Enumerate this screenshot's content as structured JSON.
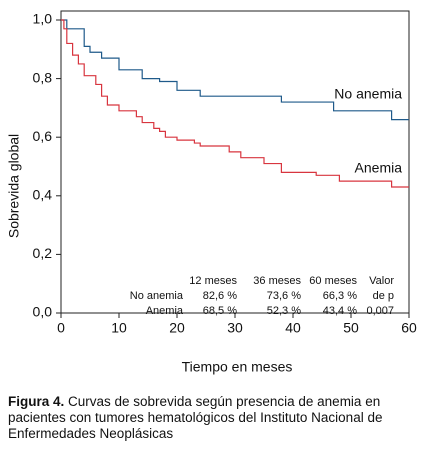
{
  "chart_data": {
    "type": "line",
    "step": "post",
    "xlabel": "Tiempo en meses",
    "ylabel": "Sobrevida global",
    "xlim": [
      0,
      60
    ],
    "xticks": [
      0,
      10,
      20,
      30,
      40,
      50,
      60
    ],
    "ylim": [
      0,
      1
    ],
    "yticks": [
      {
        "value": 0,
        "label": "0,0"
      },
      {
        "value": 0.2,
        "label": "0,2"
      },
      {
        "value": 0.4,
        "label": "0,4"
      },
      {
        "value": 0.6,
        "label": "0,6"
      },
      {
        "value": 0.8,
        "label": "0,8"
      },
      {
        "value": 1,
        "label": "1,0"
      }
    ],
    "grid": false,
    "series": [
      {
        "name": "No anemia",
        "color": "#1f5a8a",
        "x": [
          0,
          1,
          4,
          5,
          7,
          10,
          14,
          17,
          20,
          24,
          38,
          47,
          57,
          60
        ],
        "values": [
          1,
          0.97,
          0.91,
          0.89,
          0.87,
          0.83,
          0.8,
          0.79,
          0.76,
          0.74,
          0.72,
          0.69,
          0.66,
          0.66
        ]
      },
      {
        "name": "Anemia",
        "color": "#d8353f",
        "x": [
          0,
          0.5,
          1,
          2,
          3,
          4,
          6,
          7,
          8,
          10,
          13,
          14,
          16,
          17,
          18,
          20,
          23,
          24,
          29,
          31,
          35,
          38,
          44,
          48,
          57,
          60
        ],
        "values": [
          1,
          0.97,
          0.92,
          0.88,
          0.85,
          0.81,
          0.78,
          0.74,
          0.71,
          0.69,
          0.67,
          0.65,
          0.63,
          0.62,
          0.6,
          0.59,
          0.58,
          0.57,
          0.55,
          0.53,
          0.51,
          0.48,
          0.47,
          0.45,
          0.43,
          0.43
        ]
      }
    ],
    "table": {
      "columns": [
        "12 meses",
        "36 meses",
        "60 meses",
        "Valor"
      ],
      "rows": [
        [
          "No anemia",
          "82,6 %",
          "73,6 %",
          "66,3 %",
          "de p"
        ],
        [
          "Anemia",
          "68,5 %",
          "52,3 %",
          "43,4 %",
          "0,007"
        ]
      ]
    }
  },
  "caption": {
    "label": "Figura 4.",
    "text": " Curvas de sobrevida según presencia de anemia en pacientes con tumores hematológicos del Instituto Nacional de Enfermedades Neoplásicas"
  }
}
